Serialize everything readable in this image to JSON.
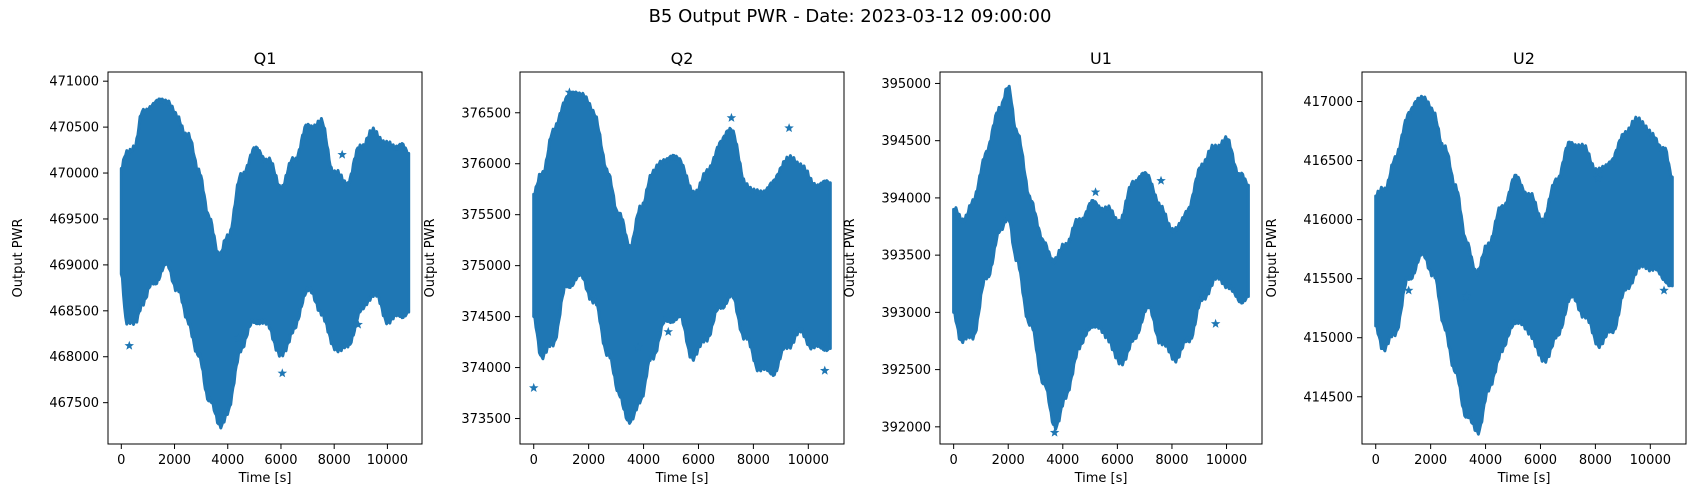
{
  "figure": {
    "title": "B5 Output PWR - Date: 2023-03-12 09:00:00",
    "marker_color": "#1f77b4"
  },
  "chart_data": [
    {
      "type": "scatter",
      "marker": "star",
      "title": "Q1",
      "xlabel": "Time [s]",
      "ylabel": "Output PWR",
      "xlim": [
        -500,
        11300
      ],
      "ylim": [
        467050,
        471100
      ],
      "xticks": [
        0,
        2000,
        4000,
        6000,
        8000,
        10000
      ],
      "yticks": [
        467500,
        468000,
        468500,
        469000,
        469500,
        470000,
        470500,
        471000
      ],
      "envelope": {
        "x": [
          0,
          200,
          500,
          800,
          1200,
          1700,
          2100,
          2500,
          2900,
          3300,
          3700,
          4000,
          4500,
          5000,
          5500,
          6000,
          6500,
          7000,
          7500,
          8000,
          8500,
          9000,
          9500,
          10000,
          10500,
          10800
        ],
        "upper": [
          470050,
          470200,
          470300,
          470650,
          470750,
          470800,
          470600,
          470400,
          470050,
          469500,
          469100,
          469300,
          469950,
          470250,
          470150,
          469850,
          470150,
          470500,
          470550,
          470000,
          469900,
          470300,
          470450,
          470300,
          470300,
          470200
        ],
        "lower": [
          468900,
          468400,
          468350,
          468600,
          468800,
          469000,
          468750,
          468400,
          468000,
          467550,
          467250,
          467400,
          468100,
          468400,
          468350,
          468000,
          468300,
          468750,
          468500,
          468100,
          468100,
          468500,
          468700,
          468400,
          468450,
          468500
        ]
      },
      "outliers": [
        [
          300,
          468120
        ],
        [
          6050,
          467820
        ],
        [
          8900,
          468350
        ],
        [
          4400,
          468200
        ],
        [
          8300,
          470200
        ]
      ]
    },
    {
      "type": "scatter",
      "marker": "star",
      "title": "Q2",
      "xlabel": "Time [s]",
      "ylabel": "Output PWR",
      "xlim": [
        -500,
        11300
      ],
      "ylim": [
        373250,
        376900
      ],
      "xticks": [
        0,
        2000,
        4000,
        6000,
        8000,
        10000
      ],
      "yticks": [
        373500,
        374000,
        374500,
        375000,
        375500,
        376000,
        376500
      ],
      "envelope": {
        "x": [
          0,
          300,
          700,
          1200,
          1700,
          2200,
          2700,
          3100,
          3500,
          3900,
          4300,
          4800,
          5300,
          5800,
          6300,
          6800,
          7200,
          7700,
          8200,
          8700,
          9200,
          9700,
          10200,
          10800
        ],
        "upper": [
          375700,
          375900,
          376300,
          376650,
          376700,
          376500,
          375900,
          375500,
          375200,
          375550,
          375900,
          376050,
          376050,
          375700,
          375900,
          376200,
          376350,
          375800,
          375700,
          375800,
          376050,
          376000,
          375800,
          375800
        ],
        "lower": [
          374500,
          374100,
          374250,
          374800,
          374900,
          374650,
          374150,
          373750,
          373450,
          373700,
          374100,
          374450,
          374500,
          374100,
          374300,
          374600,
          374700,
          374300,
          374000,
          373950,
          374200,
          374350,
          374200,
          374200
        ]
      },
      "outliers": [
        [
          0,
          373800
        ],
        [
          7200,
          376450
        ],
        [
          9300,
          376350
        ],
        [
          3800,
          374200
        ],
        [
          10600,
          373970
        ],
        [
          4900,
          374350
        ],
        [
          1300,
          376700
        ]
      ]
    },
    {
      "type": "scatter",
      "marker": "star",
      "title": "U1",
      "xlabel": "Time [s]",
      "ylabel": "Output PWR",
      "xlim": [
        -500,
        11300
      ],
      "ylim": [
        391850,
        395100
      ],
      "xticks": [
        0,
        2000,
        4000,
        6000,
        8000,
        10000
      ],
      "yticks": [
        392000,
        392500,
        393000,
        393500,
        394000,
        394500,
        395000
      ],
      "envelope": {
        "x": [
          0,
          300,
          700,
          1200,
          1700,
          2000,
          2300,
          2800,
          3300,
          3700,
          4100,
          4600,
          5100,
          5600,
          6100,
          6600,
          7100,
          7600,
          8100,
          8600,
          9100,
          9600,
          10000,
          10500,
          10800
        ],
        "upper": [
          393900,
          393800,
          393950,
          394400,
          394800,
          394950,
          394600,
          394000,
          393600,
          393450,
          393600,
          393800,
          393950,
          393900,
          393800,
          394150,
          394200,
          393900,
          393700,
          393900,
          394300,
          394450,
          394500,
          394200,
          394100
        ],
        "lower": [
          393000,
          392750,
          392800,
          393300,
          393700,
          393850,
          393450,
          392900,
          392400,
          392000,
          392250,
          392700,
          392900,
          392800,
          392550,
          392750,
          393050,
          392750,
          392600,
          392750,
          393100,
          393300,
          393250,
          393100,
          393150
        ]
      },
      "outliers": [
        [
          5200,
          394050
        ],
        [
          7600,
          394150
        ],
        [
          3700,
          391950
        ],
        [
          9600,
          392900
        ]
      ]
    },
    {
      "type": "scatter",
      "marker": "star",
      "title": "U2",
      "xlabel": "Time [s]",
      "ylabel": "Output PWR",
      "xlim": [
        -500,
        11300
      ],
      "ylim": [
        414100,
        417250
      ],
      "xticks": [
        0,
        2000,
        4000,
        6000,
        8000,
        10000
      ],
      "yticks": [
        414500,
        415000,
        415500,
        416000,
        416500,
        417000
      ],
      "envelope": {
        "x": [
          0,
          300,
          700,
          1200,
          1700,
          2100,
          2500,
          2900,
          3300,
          3700,
          4100,
          4600,
          5100,
          5600,
          6100,
          6600,
          7100,
          7600,
          8100,
          8600,
          9100,
          9600,
          10100,
          10500,
          10800
        ],
        "upper": [
          416200,
          416250,
          416500,
          416900,
          417050,
          416900,
          416600,
          416300,
          415800,
          415550,
          415800,
          416100,
          416350,
          416200,
          416000,
          416350,
          416650,
          416600,
          416400,
          416500,
          416750,
          416850,
          416700,
          416600,
          416350
        ],
        "lower": [
          415100,
          414900,
          415050,
          415500,
          415700,
          415550,
          415100,
          414700,
          414350,
          414200,
          414550,
          414900,
          415150,
          415050,
          414800,
          415000,
          415350,
          415200,
          414950,
          415050,
          415400,
          415600,
          415600,
          415500,
          415450
        ]
      },
      "outliers": [
        [
          3300,
          415350
        ],
        [
          1200,
          415400
        ],
        [
          8100,
          416350
        ],
        [
          10500,
          415400
        ]
      ]
    }
  ]
}
